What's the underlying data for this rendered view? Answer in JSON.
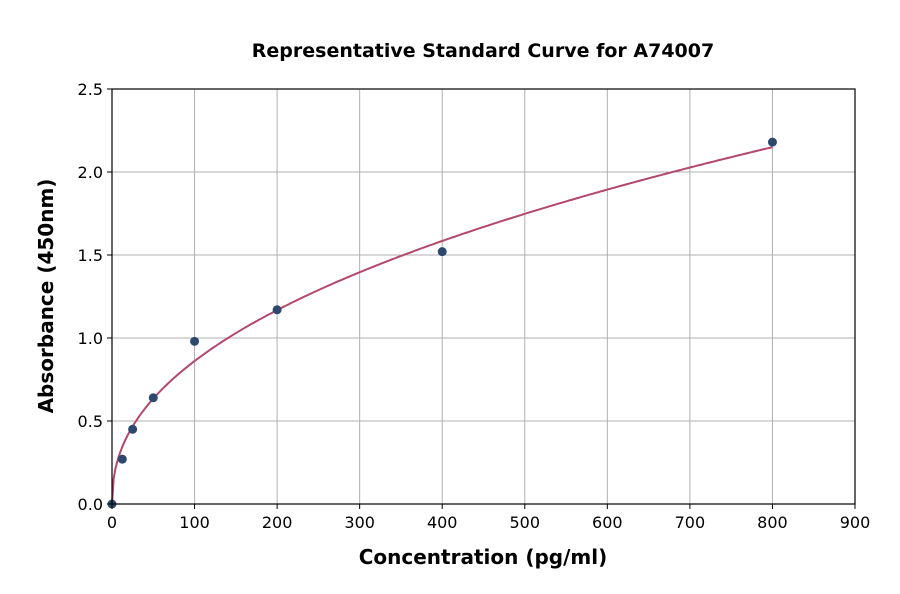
{
  "chart_data": {
    "type": "scatter",
    "title": "Representative Standard Curve for A74007",
    "xlabel": "Concentration (pg/ml)",
    "ylabel": "Absorbance (450nm)",
    "xlim": [
      0,
      900
    ],
    "ylim": [
      0,
      2.5
    ],
    "xticks": [
      0,
      100,
      200,
      300,
      400,
      500,
      600,
      700,
      800,
      900
    ],
    "yticks": [
      "0.0",
      "0.5",
      "1.0",
      "1.5",
      "2.0",
      "2.5"
    ],
    "grid": true,
    "points": {
      "x": [
        0,
        12.5,
        25,
        50,
        100,
        200,
        400,
        800
      ],
      "y": [
        0.0,
        0.27,
        0.45,
        0.64,
        0.98,
        1.17,
        1.52,
        2.18
      ]
    },
    "fit_curve": "smooth fitted curve through points",
    "colors": {
      "points": "#2d4a6e",
      "curve": "#b5476b",
      "grid": "#b0b0b0"
    }
  }
}
